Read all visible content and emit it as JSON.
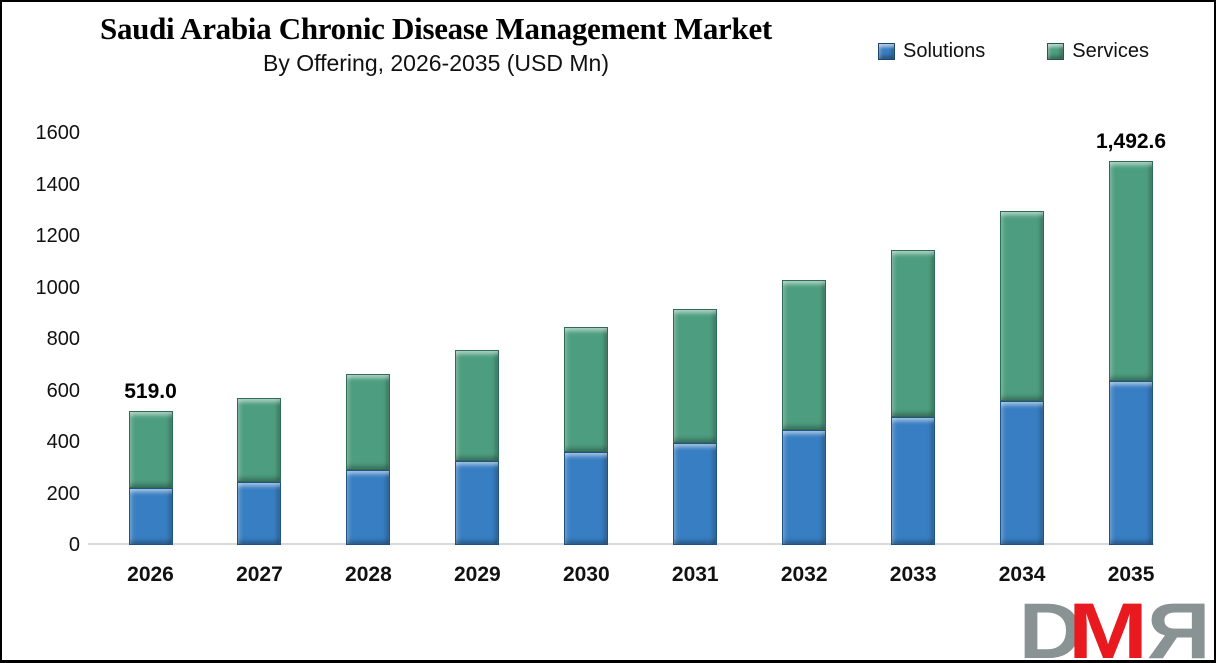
{
  "header": {
    "title": "Saudi Arabia Chronic Disease Management Market",
    "subtitle": "By Offering, 2026-2035 (USD Mn)"
  },
  "legend": {
    "items": [
      {
        "label": "Solutions",
        "color": "#377ec2"
      },
      {
        "label": "Services",
        "color": "#4d9e80"
      }
    ]
  },
  "chart_data": {
    "type": "bar",
    "stacked": true,
    "title": "Saudi Arabia Chronic Disease Management Market",
    "subtitle": "By Offering, 2026-2035 (USD Mn)",
    "unit": "USD Mn",
    "categories": [
      "2026",
      "2027",
      "2028",
      "2029",
      "2030",
      "2031",
      "2032",
      "2033",
      "2034",
      "2035"
    ],
    "series": [
      {
        "name": "Solutions",
        "color": "#377ec2",
        "values": [
          220,
          245,
          290,
          325,
          362,
          395,
          445,
          497,
          558,
          636
        ]
      },
      {
        "name": "Services",
        "color": "#4d9e80",
        "values": [
          299,
          327,
          373,
          433,
          483,
          521,
          586,
          650,
          739,
          856.6
        ]
      }
    ],
    "totals": [
      519.0,
      572,
      663,
      758,
      845,
      916,
      1031,
      1147,
      1297,
      1492.6
    ],
    "bar_labels": [
      "519.0",
      "",
      "",
      "",
      "",
      "",
      "",
      "",
      "",
      "1,492.6"
    ],
    "ylim": [
      0,
      1600
    ],
    "yticks": [
      0,
      200,
      400,
      600,
      800,
      1000,
      1200,
      1400,
      1600
    ],
    "grid": false,
    "legend_position": "top-right"
  },
  "watermark": {
    "letters": [
      {
        "char": "D",
        "color": "#8a9394"
      },
      {
        "char": "M",
        "color": "#e8191f"
      },
      {
        "char": "R",
        "color": "#8a9394"
      }
    ]
  }
}
